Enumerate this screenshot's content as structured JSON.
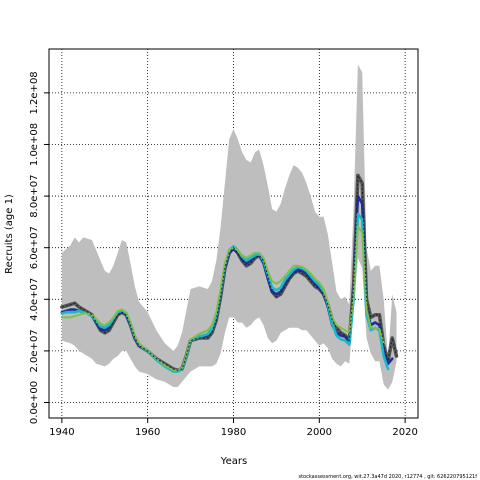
{
  "chart_data": {
    "type": "line",
    "xlabel": "Years",
    "ylabel": "Recruits (age 1)",
    "xlim": [
      1937,
      2023
    ],
    "ylim": [
      -6000000,
      137000000
    ],
    "x_ticks": [
      1940,
      1960,
      1980,
      2000,
      2020
    ],
    "x_tick_labels": [
      "1940",
      "1960",
      "1980",
      "2000",
      "2020"
    ],
    "y_ticks": [
      0,
      20000000,
      40000000,
      60000000,
      80000000,
      100000000,
      120000000
    ],
    "y_tick_labels": [
      "0.0e+00",
      "2.0e+07",
      "4.0e+07",
      "6.0e+07",
      "8.0e+07",
      "1.0e+08",
      "1.2e+08"
    ],
    "grid": true,
    "grid_style": "dotted",
    "footer_text": "stockassessment.org, wit.27.3a47d   2020, r12774 , git: 626220795121f",
    "band": {
      "color": "#bebebe",
      "x": [
        1940,
        1942,
        1943,
        1944,
        1945,
        1947,
        1948,
        1950,
        1951,
        1952,
        1953,
        1954,
        1955,
        1956,
        1957,
        1958,
        1960,
        1962,
        1964,
        1966,
        1967,
        1968,
        1970,
        1972,
        1974,
        1975,
        1976,
        1977,
        1978,
        1979,
        1980,
        1981,
        1982,
        1983,
        1984,
        1985,
        1986,
        1987,
        1988,
        1989,
        1990,
        1991,
        1992,
        1993,
        1994,
        1995,
        1996,
        1997,
        1998,
        1999,
        2000,
        2001,
        2002,
        2003,
        2004,
        2005,
        2006,
        2007,
        2008,
        2009,
        2010,
        2011,
        2012,
        2013,
        2014,
        2015,
        2016,
        2017,
        2018
      ],
      "upper": [
        58000000,
        61000000,
        64000000,
        62000000,
        64000000,
        63000000,
        59000000,
        51000000,
        50000000,
        53000000,
        58000000,
        63000000,
        62000000,
        54000000,
        45000000,
        39000000,
        35000000,
        28000000,
        23000000,
        20000000,
        22000000,
        27000000,
        44000000,
        45000000,
        44000000,
        47000000,
        55000000,
        68000000,
        85000000,
        102000000,
        106000000,
        102000000,
        97000000,
        94000000,
        93000000,
        97000000,
        98000000,
        92000000,
        84000000,
        75000000,
        74000000,
        77000000,
        83000000,
        88000000,
        92000000,
        91000000,
        89000000,
        85000000,
        80000000,
        74000000,
        72000000,
        72000000,
        65000000,
        54000000,
        43000000,
        40000000,
        41000000,
        38000000,
        75000000,
        131000000,
        128000000,
        60000000,
        51000000,
        53000000,
        53000000,
        40000000,
        17000000,
        42000000,
        35000000
      ],
      "lower": [
        24000000,
        23000000,
        22000000,
        20000000,
        19000000,
        17000000,
        15000000,
        14000000,
        15000000,
        17000000,
        18000000,
        20000000,
        20000000,
        17000000,
        14000000,
        12000000,
        11000000,
        9000000,
        8000000,
        6000000,
        6000000,
        8000000,
        12000000,
        14000000,
        14000000,
        14000000,
        15000000,
        19000000,
        27000000,
        33000000,
        33000000,
        31000000,
        31000000,
        29000000,
        30000000,
        32000000,
        33000000,
        30000000,
        25000000,
        23000000,
        24000000,
        27000000,
        28000000,
        29000000,
        29000000,
        29000000,
        28000000,
        28000000,
        26000000,
        24000000,
        22000000,
        23000000,
        21000000,
        17000000,
        15000000,
        14000000,
        16000000,
        15000000,
        36000000,
        56000000,
        52000000,
        25000000,
        19000000,
        16000000,
        16000000,
        7000000,
        5000000,
        8000000,
        16000000
      ]
    },
    "series": [
      {
        "color": "#555555",
        "width": 3.6,
        "x": [
          1940,
          1941,
          1942,
          1943,
          1944,
          1945,
          1946,
          1947,
          1948,
          1949,
          1950,
          1951,
          1952,
          1953,
          1954,
          1955,
          1956,
          1957,
          1958,
          1959,
          1960,
          1962,
          1964,
          1966,
          1967,
          1968,
          1969,
          1970,
          1972,
          1974,
          1975,
          1976,
          1977,
          1978,
          1979,
          1980,
          1981,
          1982,
          1983,
          1984,
          1985,
          1986,
          1987,
          1988,
          1989,
          1990,
          1991,
          1992,
          1993,
          1994,
          1995,
          1996,
          1997,
          1998,
          1999,
          2000,
          2001,
          2002,
          2003,
          2004,
          2005,
          2006,
          2007,
          2008,
          2009,
          2010,
          2011,
          2012,
          2013,
          2014,
          2015,
          2016,
          2017,
          2018
        ],
        "values": [
          37000000,
          37500000,
          38000000,
          38500000,
          37000000,
          36000000,
          35000000,
          34000000,
          31000000,
          28000000,
          27000000,
          28000000,
          31000000,
          34000000,
          35000000,
          34000000,
          30000000,
          25000000,
          22000000,
          21000000,
          20000000,
          17000000,
          15000000,
          13000000,
          12500000,
          13000000,
          18000000,
          24000000,
          25000000,
          25000000,
          27000000,
          32000000,
          41000000,
          52000000,
          58000000,
          60000000,
          58000000,
          55000000,
          53000000,
          54000000,
          56000000,
          57000000,
          55000000,
          49000000,
          43000000,
          41000000,
          42000000,
          45000000,
          48000000,
          50000000,
          51000000,
          50000000,
          49000000,
          47000000,
          45000000,
          44000000,
          42000000,
          38000000,
          32000000,
          29000000,
          27000000,
          26000000,
          24000000,
          45000000,
          88000000,
          85000000,
          40000000,
          33000000,
          34000000,
          34000000,
          22000000,
          16000000,
          25000000,
          18000000
        ]
      },
      {
        "color": "#1f2f9a",
        "width": 2.6,
        "x": [
          1940,
          1941,
          1942,
          1943,
          1944,
          1945,
          1946,
          1947,
          1948,
          1949,
          1950,
          1951,
          1952,
          1953,
          1954,
          1955,
          1956,
          1957,
          1958,
          1959,
          1960,
          1962,
          1964,
          1966,
          1967,
          1968,
          1969,
          1970,
          1972,
          1974,
          1975,
          1976,
          1977,
          1978,
          1979,
          1980,
          1981,
          1982,
          1983,
          1984,
          1985,
          1986,
          1987,
          1988,
          1989,
          1990,
          1991,
          1992,
          1993,
          1994,
          1995,
          1996,
          1997,
          1998,
          1999,
          2000,
          2001,
          2002,
          2003,
          2004,
          2005,
          2006,
          2007,
          2008,
          2009,
          2010,
          2011,
          2012,
          2013,
          2014,
          2015,
          2016,
          2017
        ],
        "values": [
          35000000,
          35500000,
          36000000,
          36000000,
          35500000,
          35000000,
          34500000,
          33500000,
          31000000,
          28500000,
          28000000,
          29000000,
          32000000,
          34500000,
          35000000,
          34000000,
          30000000,
          25000000,
          22000000,
          21000000,
          20000000,
          17000000,
          14500000,
          12500000,
          12500000,
          13500000,
          18500000,
          24000000,
          25500000,
          26000000,
          28000000,
          33000000,
          42000000,
          52000000,
          58000000,
          59500000,
          58000000,
          55500000,
          54000000,
          55000000,
          56500000,
          57000000,
          54000000,
          48000000,
          43000000,
          42000000,
          43000000,
          46000000,
          48500000,
          50500000,
          51500000,
          51000000,
          50000000,
          48000000,
          46000000,
          44500000,
          42000000,
          37000000,
          30000000,
          27000000,
          26000000,
          25500000,
          23500000,
          42000000,
          80000000,
          77000000,
          36000000,
          30000000,
          31000000,
          30000000,
          20000000,
          15000000,
          17000000
        ]
      },
      {
        "color": "#18b8c8",
        "width": 2.6,
        "x": [
          1940,
          1941,
          1942,
          1943,
          1944,
          1945,
          1946,
          1947,
          1948,
          1949,
          1950,
          1951,
          1952,
          1953,
          1954,
          1955,
          1956,
          1957,
          1958,
          1959,
          1960,
          1962,
          1964,
          1966,
          1967,
          1968,
          1969,
          1970,
          1972,
          1974,
          1975,
          1976,
          1977,
          1978,
          1979,
          1980,
          1981,
          1982,
          1983,
          1984,
          1985,
          1986,
          1987,
          1988,
          1989,
          1990,
          1991,
          1992,
          1993,
          1994,
          1995,
          1996,
          1997,
          1998,
          1999,
          2000,
          2001,
          2002,
          2003,
          2004,
          2005,
          2006,
          2007,
          2008,
          2009,
          2010,
          2011,
          2012,
          2013,
          2014,
          2015,
          2016
        ],
        "values": [
          34500000,
          35000000,
          35000000,
          35000000,
          35500000,
          35000000,
          34500000,
          33500000,
          31500000,
          29500000,
          29000000,
          30000000,
          32500000,
          35000000,
          35500000,
          34500000,
          30500000,
          25500000,
          22500000,
          21000000,
          20000000,
          16500000,
          14000000,
          12000000,
          12000000,
          13000000,
          18000000,
          24000000,
          25500000,
          26500000,
          28500000,
          33500000,
          42500000,
          53000000,
          59000000,
          60500000,
          59000000,
          56500000,
          55000000,
          56000000,
          57000000,
          57500000,
          55000000,
          49500000,
          44500000,
          43500000,
          44500000,
          47500000,
          49500000,
          51500000,
          52500000,
          52000000,
          51000000,
          49000000,
          47000000,
          45500000,
          43000000,
          38000000,
          30500000,
          26000000,
          24500000,
          24000000,
          22500000,
          40000000,
          73000000,
          71000000,
          34000000,
          28000000,
          29000000,
          28000000,
          18000000,
          13000000
        ]
      },
      {
        "color": "#7fbf4c",
        "width": 2.0,
        "x": [
          1940,
          1941,
          1942,
          1943,
          1944,
          1945,
          1946,
          1947,
          1948,
          1949,
          1950,
          1951,
          1952,
          1953,
          1954,
          1955,
          1956,
          1957,
          1958,
          1959,
          1960,
          1962,
          1964,
          1966,
          1967,
          1968,
          1969,
          1970,
          1972,
          1974,
          1975,
          1976,
          1977,
          1978,
          1979,
          1980,
          1981,
          1982,
          1983,
          1984,
          1985,
          1986,
          1987,
          1988,
          1989,
          1990,
          1991,
          1992,
          1993,
          1994,
          1995,
          1996,
          1997,
          1998,
          1999,
          2000,
          2001,
          2002,
          2003,
          2004,
          2005,
          2006,
          2007,
          2008,
          2009,
          2010,
          2011,
          2012,
          2013,
          2014,
          2015
        ],
        "values": [
          33000000,
          33000000,
          33000000,
          33500000,
          34000000,
          34500000,
          34500000,
          34000000,
          32500000,
          30500000,
          30000000,
          31000000,
          33000000,
          35500000,
          36000000,
          35000000,
          31000000,
          26000000,
          23000000,
          21500000,
          20500000,
          17000000,
          14500000,
          12500000,
          12500000,
          13500000,
          18500000,
          24500000,
          26500000,
          28000000,
          30000000,
          35000000,
          44000000,
          54000000,
          59000000,
          60000000,
          59000000,
          57000000,
          56000000,
          57000000,
          58000000,
          58000000,
          56000000,
          51000000,
          47000000,
          46000000,
          47000000,
          49000000,
          51000000,
          53000000,
          53000000,
          52500000,
          51500000,
          50000000,
          48000000,
          46500000,
          44000000,
          39000000,
          33000000,
          30000000,
          29000000,
          28000000,
          27000000,
          41000000,
          68000000,
          66000000,
          36000000,
          29000000,
          29000000,
          28500000,
          23000000
        ]
      }
    ]
  }
}
